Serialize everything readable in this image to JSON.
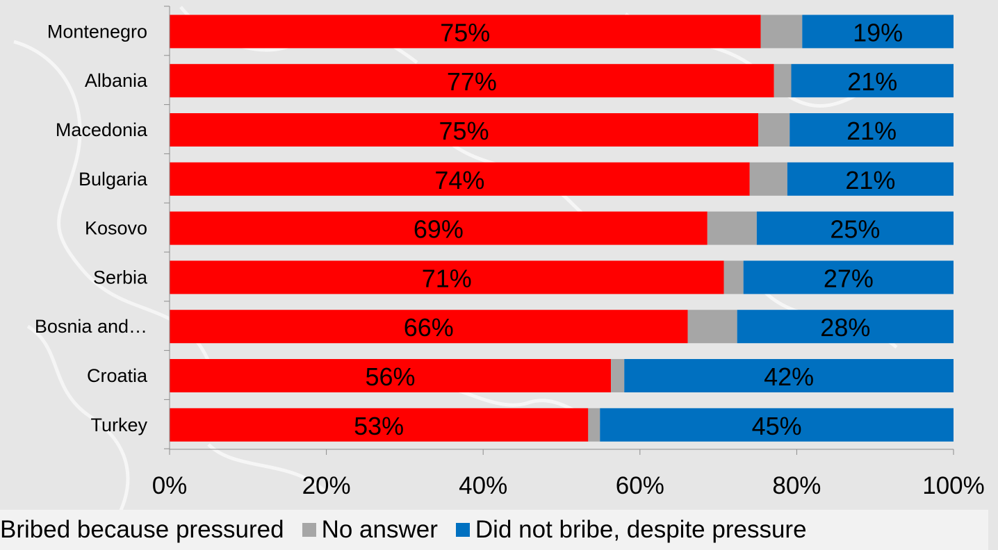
{
  "chart_data": {
    "type": "bar",
    "stacked": true,
    "orientation": "horizontal",
    "categories": [
      "Montenegro",
      "Albania",
      "Macedonia",
      "Bulgaria",
      "Kosovo",
      "Serbia",
      "Bosnia and…",
      "Croatia",
      "Turkey"
    ],
    "series": [
      {
        "name": "Bribed because pressured",
        "color": "#ff0000",
        "values": [
          75.4,
          77.1,
          75.1,
          74.0,
          68.6,
          70.7,
          66.1,
          56.3,
          53.4
        ],
        "labels": [
          "75%",
          "77%",
          "75%",
          "74%",
          "69%",
          "71%",
          "66%",
          "56%",
          "53%"
        ]
      },
      {
        "name": "No answer",
        "color": "#a6a6a6",
        "values": [
          5.3,
          2.2,
          4.0,
          4.8,
          6.3,
          2.5,
          6.3,
          1.7,
          1.5
        ],
        "labels": [
          "",
          "",
          "",
          "",
          "",
          "",
          "",
          "",
          ""
        ]
      },
      {
        "name": "Did not bribe, despite pressure",
        "color": "#0070c0",
        "values": [
          19.3,
          20.7,
          20.9,
          21.2,
          25.1,
          26.8,
          27.6,
          42.0,
          45.1
        ],
        "labels": [
          "19%",
          "21%",
          "21%",
          "21%",
          "25%",
          "27%",
          "28%",
          "42%",
          "45%"
        ]
      }
    ],
    "xlim": [
      0,
      100
    ],
    "x_ticks": [
      "0%",
      "20%",
      "40%",
      "60%",
      "80%",
      "100%"
    ],
    "grid": false,
    "legend_position": "bottom"
  },
  "legend": {
    "items": [
      {
        "label": "Bribed because pressured",
        "color": "#ff0000"
      },
      {
        "label": "No answer",
        "color": "#a6a6a6"
      },
      {
        "label": "Did not bribe, despite pressure",
        "color": "#0070c0"
      }
    ]
  }
}
